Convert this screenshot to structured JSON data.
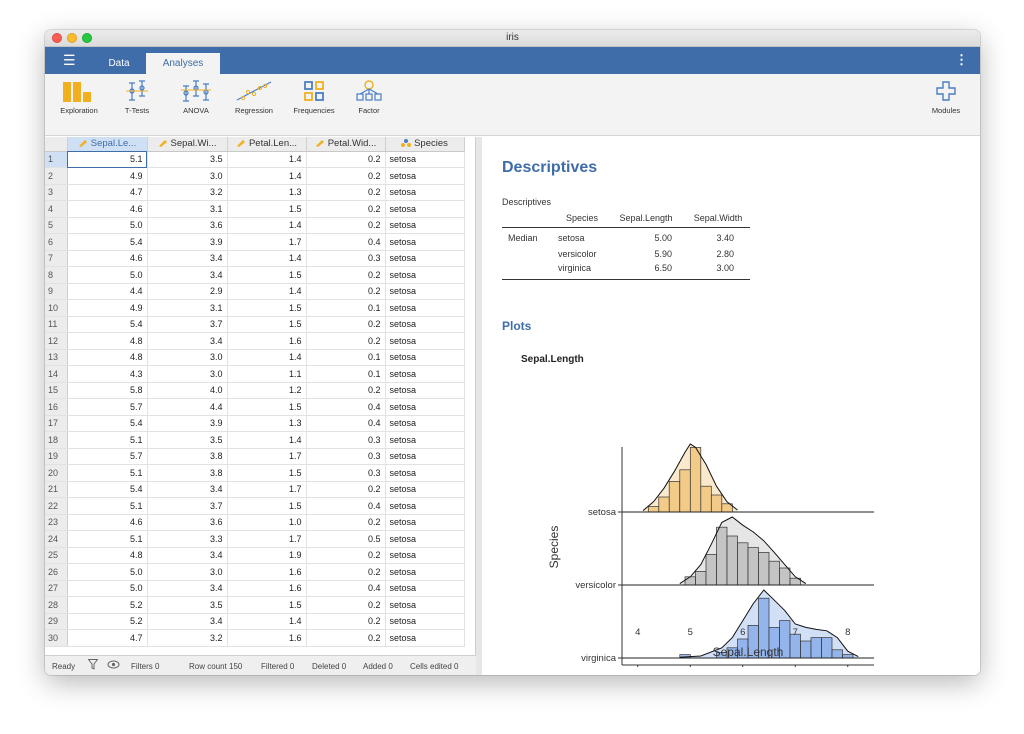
{
  "window": {
    "title": "iris"
  },
  "menu": {
    "tabs": [
      {
        "label": "Data"
      },
      {
        "label": "Analyses"
      }
    ]
  },
  "ribbon": {
    "buttons": [
      {
        "label": "Exploration",
        "icon": "exploration-icon"
      },
      {
        "label": "T-Tests",
        "icon": "ttests-icon"
      },
      {
        "label": "ANOVA",
        "icon": "anova-icon"
      },
      {
        "label": "Regression",
        "icon": "regression-icon"
      },
      {
        "label": "Frequencies",
        "icon": "frequencies-icon"
      },
      {
        "label": "Factor",
        "icon": "factor-icon"
      }
    ],
    "modules_label": "Modules"
  },
  "spreadsheet": {
    "columns": [
      {
        "label": "Sepal.Le...",
        "type": "continuous"
      },
      {
        "label": "Sepal.Wi...",
        "type": "continuous"
      },
      {
        "label": "Petal.Len...",
        "type": "continuous"
      },
      {
        "label": "Petal.Wid...",
        "type": "continuous"
      },
      {
        "label": "Species",
        "type": "nominal"
      }
    ],
    "rows": [
      [
        "1",
        "5.1",
        "3.5",
        "1.4",
        "0.2",
        "setosa"
      ],
      [
        "2",
        "4.9",
        "3.0",
        "1.4",
        "0.2",
        "setosa"
      ],
      [
        "3",
        "4.7",
        "3.2",
        "1.3",
        "0.2",
        "setosa"
      ],
      [
        "4",
        "4.6",
        "3.1",
        "1.5",
        "0.2",
        "setosa"
      ],
      [
        "5",
        "5.0",
        "3.6",
        "1.4",
        "0.2",
        "setosa"
      ],
      [
        "6",
        "5.4",
        "3.9",
        "1.7",
        "0.4",
        "setosa"
      ],
      [
        "7",
        "4.6",
        "3.4",
        "1.4",
        "0.3",
        "setosa"
      ],
      [
        "8",
        "5.0",
        "3.4",
        "1.5",
        "0.2",
        "setosa"
      ],
      [
        "9",
        "4.4",
        "2.9",
        "1.4",
        "0.2",
        "setosa"
      ],
      [
        "10",
        "4.9",
        "3.1",
        "1.5",
        "0.1",
        "setosa"
      ],
      [
        "11",
        "5.4",
        "3.7",
        "1.5",
        "0.2",
        "setosa"
      ],
      [
        "12",
        "4.8",
        "3.4",
        "1.6",
        "0.2",
        "setosa"
      ],
      [
        "13",
        "4.8",
        "3.0",
        "1.4",
        "0.1",
        "setosa"
      ],
      [
        "14",
        "4.3",
        "3.0",
        "1.1",
        "0.1",
        "setosa"
      ],
      [
        "15",
        "5.8",
        "4.0",
        "1.2",
        "0.2",
        "setosa"
      ],
      [
        "16",
        "5.7",
        "4.4",
        "1.5",
        "0.4",
        "setosa"
      ],
      [
        "17",
        "5.4",
        "3.9",
        "1.3",
        "0.4",
        "setosa"
      ],
      [
        "18",
        "5.1",
        "3.5",
        "1.4",
        "0.3",
        "setosa"
      ],
      [
        "19",
        "5.7",
        "3.8",
        "1.7",
        "0.3",
        "setosa"
      ],
      [
        "20",
        "5.1",
        "3.8",
        "1.5",
        "0.3",
        "setosa"
      ],
      [
        "21",
        "5.4",
        "3.4",
        "1.7",
        "0.2",
        "setosa"
      ],
      [
        "22",
        "5.1",
        "3.7",
        "1.5",
        "0.4",
        "setosa"
      ],
      [
        "23",
        "4.6",
        "3.6",
        "1.0",
        "0.2",
        "setosa"
      ],
      [
        "24",
        "5.1",
        "3.3",
        "1.7",
        "0.5",
        "setosa"
      ],
      [
        "25",
        "4.8",
        "3.4",
        "1.9",
        "0.2",
        "setosa"
      ],
      [
        "26",
        "5.0",
        "3.0",
        "1.6",
        "0.2",
        "setosa"
      ],
      [
        "27",
        "5.0",
        "3.4",
        "1.6",
        "0.4",
        "setosa"
      ],
      [
        "28",
        "5.2",
        "3.5",
        "1.5",
        "0.2",
        "setosa"
      ],
      [
        "29",
        "5.2",
        "3.4",
        "1.4",
        "0.2",
        "setosa"
      ],
      [
        "30",
        "4.7",
        "3.2",
        "1.6",
        "0.2",
        "setosa"
      ]
    ]
  },
  "status": {
    "ready": "Ready",
    "filters": "Filters 0",
    "row_count": "Row count 150",
    "filtered": "Filtered 0",
    "deleted": "Deleted 0",
    "added": "Added 0",
    "cells_edited": "Cells edited 0"
  },
  "results": {
    "heading": "Descriptives",
    "table_caption": "Descriptives",
    "table": {
      "headers": [
        "",
        "Species",
        "Sepal.Length",
        "Sepal.Width"
      ],
      "stat_label": "Median",
      "rows": [
        {
          "species": "setosa",
          "sepal_length": "5.00",
          "sepal_width": "3.40"
        },
        {
          "species": "versicolor",
          "sepal_length": "5.90",
          "sepal_width": "2.80"
        },
        {
          "species": "virginica",
          "sepal_length": "6.50",
          "sepal_width": "3.00"
        }
      ]
    },
    "plots_heading": "Plots",
    "plot_title": "Sepal.Length"
  },
  "chart_data": {
    "type": "area",
    "xlabel": "Sepal.Length",
    "ylabel": "Species",
    "xlim": [
      3.7,
      8.5
    ],
    "x_ticks": [
      4,
      5,
      6,
      7,
      8
    ],
    "categories": [
      "setosa",
      "versicolor",
      "virginica"
    ],
    "series": [
      {
        "name": "setosa",
        "color": "#f0c070",
        "density": [
          [
            4.1,
            0.02
          ],
          [
            4.3,
            0.15
          ],
          [
            4.5,
            0.35
          ],
          [
            4.7,
            0.6
          ],
          [
            4.9,
            0.88
          ],
          [
            5.0,
            1.0
          ],
          [
            5.1,
            0.95
          ],
          [
            5.3,
            0.7
          ],
          [
            5.5,
            0.38
          ],
          [
            5.7,
            0.15
          ],
          [
            5.9,
            0.03
          ]
        ],
        "histogram": [
          [
            4.2,
            4.4,
            0.08
          ],
          [
            4.4,
            4.6,
            0.22
          ],
          [
            4.6,
            4.8,
            0.45
          ],
          [
            4.8,
            5.0,
            0.62
          ],
          [
            5.0,
            5.2,
            0.95
          ],
          [
            5.2,
            5.4,
            0.38
          ],
          [
            5.4,
            5.6,
            0.25
          ],
          [
            5.6,
            5.8,
            0.12
          ]
        ]
      },
      {
        "name": "versicolor",
        "color": "#b8b8b8",
        "density": [
          [
            4.8,
            0.02
          ],
          [
            5.0,
            0.12
          ],
          [
            5.2,
            0.3
          ],
          [
            5.4,
            0.6
          ],
          [
            5.6,
            0.92
          ],
          [
            5.8,
            1.0
          ],
          [
            6.0,
            0.88
          ],
          [
            6.2,
            0.78
          ],
          [
            6.4,
            0.65
          ],
          [
            6.6,
            0.48
          ],
          [
            6.8,
            0.3
          ],
          [
            7.0,
            0.12
          ],
          [
            7.2,
            0.02
          ]
        ],
        "histogram": [
          [
            4.9,
            5.1,
            0.12
          ],
          [
            5.1,
            5.3,
            0.2
          ],
          [
            5.3,
            5.5,
            0.45
          ],
          [
            5.5,
            5.7,
            0.85
          ],
          [
            5.7,
            5.9,
            0.72
          ],
          [
            5.9,
            6.1,
            0.62
          ],
          [
            6.1,
            6.3,
            0.55
          ],
          [
            6.3,
            6.5,
            0.48
          ],
          [
            6.5,
            6.7,
            0.35
          ],
          [
            6.7,
            6.9,
            0.25
          ],
          [
            6.9,
            7.1,
            0.1
          ]
        ]
      },
      {
        "name": "virginica",
        "color": "#7fa7e8",
        "density": [
          [
            4.8,
            0.01
          ],
          [
            5.2,
            0.03
          ],
          [
            5.6,
            0.15
          ],
          [
            5.8,
            0.3
          ],
          [
            6.0,
            0.55
          ],
          [
            6.2,
            0.8
          ],
          [
            6.4,
            1.0
          ],
          [
            6.6,
            0.85
          ],
          [
            6.8,
            0.7
          ],
          [
            7.0,
            0.5
          ],
          [
            7.2,
            0.45
          ],
          [
            7.4,
            0.42
          ],
          [
            7.6,
            0.4
          ],
          [
            7.8,
            0.3
          ],
          [
            8.0,
            0.1
          ],
          [
            8.2,
            0.02
          ]
        ],
        "histogram": [
          [
            4.8,
            5.0,
            0.05
          ],
          [
            5.5,
            5.7,
            0.08
          ],
          [
            5.7,
            5.9,
            0.15
          ],
          [
            5.9,
            6.1,
            0.28
          ],
          [
            6.1,
            6.3,
            0.48
          ],
          [
            6.3,
            6.5,
            0.88
          ],
          [
            6.5,
            6.7,
            0.45
          ],
          [
            6.7,
            6.9,
            0.55
          ],
          [
            6.9,
            7.1,
            0.35
          ],
          [
            7.1,
            7.3,
            0.25
          ],
          [
            7.3,
            7.5,
            0.3
          ],
          [
            7.5,
            7.7,
            0.3
          ],
          [
            7.7,
            7.9,
            0.12
          ],
          [
            7.9,
            8.1,
            0.05
          ]
        ]
      }
    ]
  }
}
